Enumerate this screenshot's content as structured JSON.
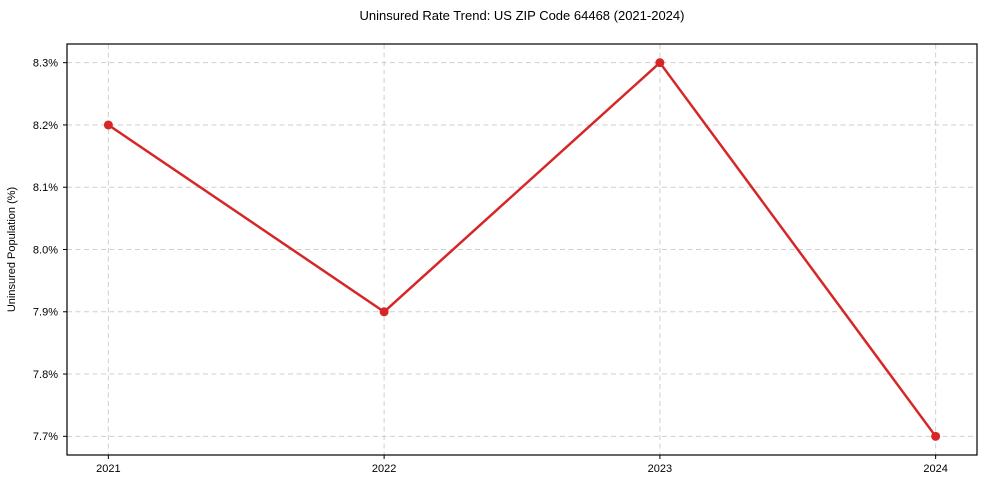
{
  "chart_data": {
    "type": "line",
    "title": "Uninsured Rate Trend: US ZIP Code 64468 (2021-2024)",
    "xlabel": "",
    "ylabel": "Uninsured Population (%)",
    "x": [
      2021,
      2022,
      2023,
      2024
    ],
    "xtick_labels": [
      "2021",
      "2022",
      "2023",
      "2024"
    ],
    "series": [
      {
        "name": "Uninsured Population (%)",
        "values": [
          8.2,
          7.9,
          8.3,
          7.7
        ],
        "color": "#d62728",
        "marker": "circle"
      }
    ],
    "yticks": [
      7.7,
      7.8,
      7.9,
      8.0,
      8.1,
      8.2,
      8.3
    ],
    "ytick_labels": [
      "7.7%",
      "7.8%",
      "7.9%",
      "8.0%",
      "8.1%",
      "8.2%",
      "8.3%"
    ],
    "xlim": [
      2020.85,
      2024.15
    ],
    "ylim": [
      7.67,
      8.33
    ],
    "grid": true,
    "grid_color": "#cfcfcf",
    "axis_color": "#000000",
    "background_color": "#ffffff",
    "legend_position": "none"
  }
}
